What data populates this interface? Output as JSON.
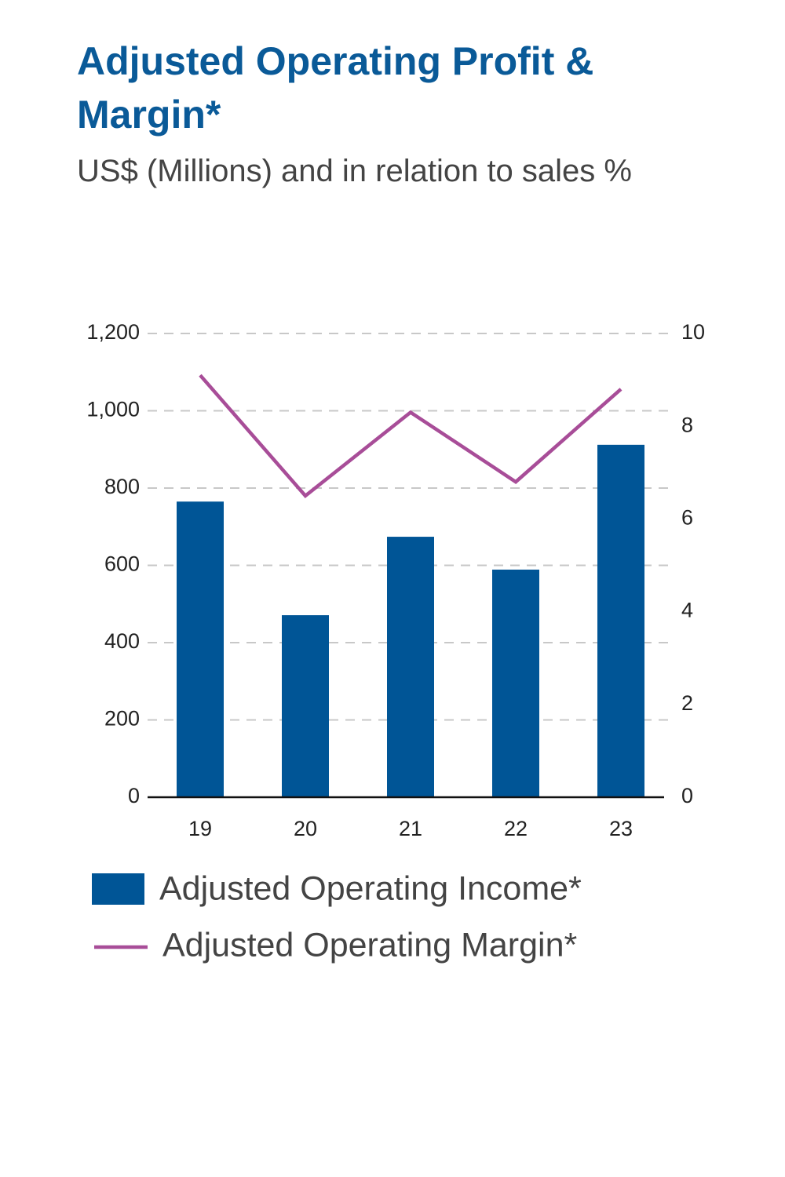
{
  "chart_data": {
    "type": "bar_line",
    "title": "Adjusted Operating Profit & Margin*",
    "subtitle": "US$ (Millions) and in relation to sales %",
    "categories": [
      "19",
      "20",
      "21",
      "22",
      "23"
    ],
    "series": [
      {
        "name": "Adjusted Operating Income*",
        "type": "bar",
        "color": "#005596",
        "values": [
          765,
          471,
          674,
          589,
          912
        ]
      },
      {
        "name": "Adjusted Operating Margin*",
        "type": "line",
        "axis": "y2",
        "color": "#a84d98",
        "values": [
          9.1,
          6.5,
          8.3,
          6.8,
          8.8
        ]
      }
    ],
    "ylim": [
      0,
      1200
    ],
    "yticks": [
      0,
      200,
      400,
      600,
      800,
      {
        "value": 1000,
        "label": "1,000"
      },
      {
        "value": 1200,
        "label": "1,200"
      }
    ],
    "y2lim": [
      0,
      10
    ],
    "y2ticks": [
      0,
      2,
      4,
      6,
      8,
      10
    ],
    "grid": true
  }
}
